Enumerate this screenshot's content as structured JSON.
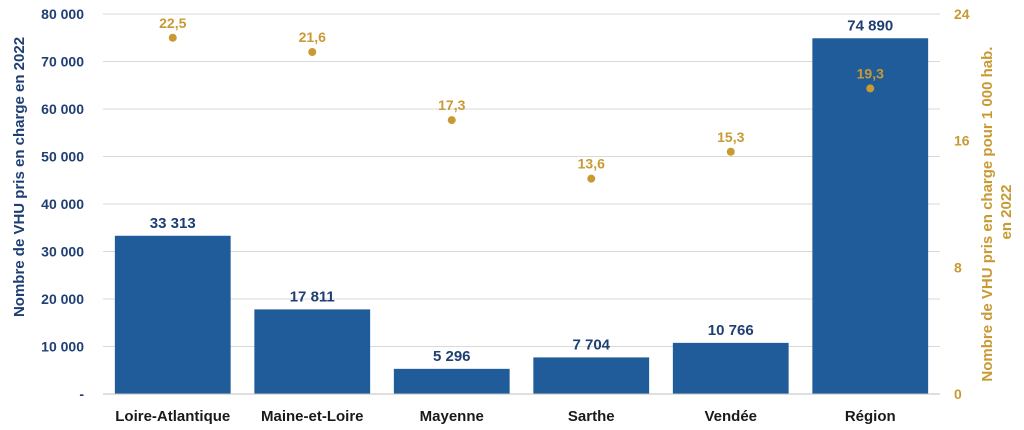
{
  "chart_data": {
    "type": "bar",
    "categories": [
      "Loire-Atlantique",
      "Maine-et-Loire",
      "Mayenne",
      "Sarthe",
      "Vendée",
      "Région"
    ],
    "series": [
      {
        "axis": "left",
        "color": "#1f5c99",
        "values": [
          33313,
          17811,
          5296,
          7704,
          10766,
          74890
        ],
        "value_labels": [
          "33 313",
          "17 811",
          "5 296",
          "7 704",
          "10 766",
          "74 890"
        ]
      },
      {
        "axis": "right",
        "render": "scatter",
        "color": "#c99a34",
        "values": [
          22.5,
          21.6,
          17.3,
          13.6,
          15.3,
          19.3
        ],
        "value_labels": [
          "22,5",
          "21,6",
          "17,3",
          "13,6",
          "15,3",
          "19,3"
        ]
      }
    ],
    "ylabel": "Nombre de VHU pris en charge en 2022",
    "ylabel_right_lines": [
      "Nombre de VHU pris en charge pour 1 000 hab.",
      "en 2022"
    ],
    "ylim": [
      0,
      80000
    ],
    "yticks": [
      0,
      10000,
      20000,
      30000,
      40000,
      50000,
      60000,
      70000,
      80000
    ],
    "ytick_labels": [
      "-",
      "10 000",
      "20 000",
      "30 000",
      "40 000",
      "50 000",
      "60 000",
      "70 000",
      "80 000"
    ],
    "ylim_right": [
      0,
      24
    ],
    "yticks_right": [
      0,
      8,
      16,
      24
    ],
    "ytick_labels_right": [
      "0",
      "8",
      "16",
      "24"
    ],
    "grid": true,
    "colors": {
      "bars": "#1f5c99",
      "dots": "#c99a34",
      "left_axis_text": "#1f3f73",
      "grid": "#d9d9d9"
    }
  }
}
